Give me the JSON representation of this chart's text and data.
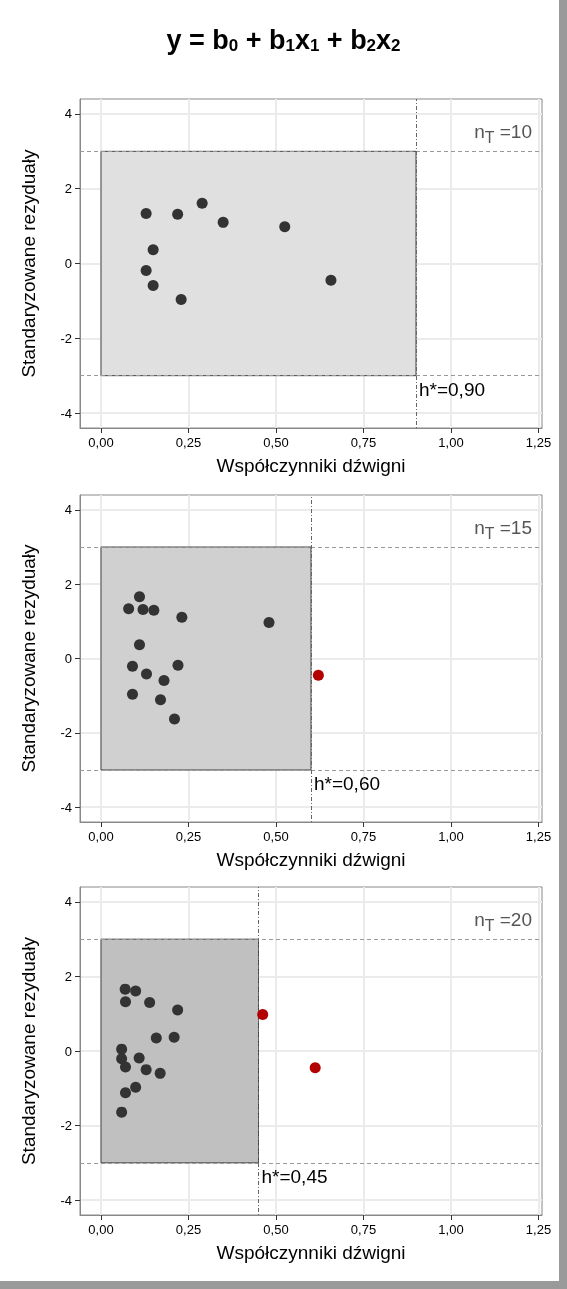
{
  "chart_data": [
    {
      "type": "scatter",
      "title": "y = b$_{0}$ + b$_{1}$x$_{1}$ + b$_{2}$x$_{2}$",
      "xlabel": "Współczynniki dźwigni",
      "ylabel": "Standaryzowane rezyduały",
      "series": [
        {
          "color": "#333333",
          "x": [
            0.129,
            0.219,
            0.289,
            0.349,
            0.525,
            0.149,
            0.129,
            0.149,
            0.229,
            0.657
          ],
          "values": [
            1.34,
            1.32,
            1.61,
            1.1,
            0.98,
            0.37,
            -0.19,
            -0.59,
            -0.96,
            -0.45
          ]
        }
      ],
      "xlim": [
        -0.06,
        1.26
      ],
      "xticks": [
        {
          "value": 0,
          "label": "0,00"
        },
        {
          "value": 0.25,
          "label": "0,25"
        },
        {
          "value": 0.5,
          "label": "0,50"
        },
        {
          "value": 0.75,
          "label": "0,75"
        },
        {
          "value": 1,
          "label": "1,00"
        },
        {
          "value": 1.25,
          "label": "1,25"
        }
      ],
      "ylim": [
        -4.4,
        4.4
      ],
      "yticks": [
        -4,
        -2,
        0,
        2,
        4
      ],
      "annotations": [
        "n$_{T}$ =10"
      ],
      "ref_lines": [
        {
          "axis": "y",
          "value": 3,
          "line_style": "dashed",
          "color": "#999999"
        },
        {
          "axis": "y",
          "value": -3,
          "line_style": "dashed",
          "color": "#999999"
        },
        {
          "axis": "x",
          "value": 0.9,
          "label": "h*=0,90",
          "line_style": "dotted",
          "color": "#666666"
        }
      ],
      "bands": [
        {
          "axis": "x",
          "from": 0,
          "to": 0.9,
          "color": "#e0e0e0"
        }
      ],
      "grid": true,
      "marker": "circle"
    },
    {
      "type": "scatter",
      "xlabel": "Współczynniki dźwigni",
      "ylabel": "Standaryzowane rezyduały",
      "series": [
        {
          "color": "#333333",
          "x": [
            0.11,
            0.079,
            0.12,
            0.151,
            0.231,
            0.48,
            0.11,
            0.09,
            0.22,
            0.13,
            0.18,
            0.09,
            0.17,
            0.21
          ],
          "values": [
            1.66,
            1.34,
            1.32,
            1.3,
            1.11,
            0.97,
            0.37,
            -0.21,
            -0.18,
            -0.42,
            -0.59,
            -0.96,
            -1.11,
            -1.63
          ]
        },
        {
          "color": "#b30000",
          "x": [
            0.621
          ],
          "values": [
            -0.45
          ]
        }
      ],
      "xlim": [
        -0.06,
        1.26
      ],
      "xticks": [
        {
          "value": 0,
          "label": "0,00"
        },
        {
          "value": 0.25,
          "label": "0,25"
        },
        {
          "value": 0.5,
          "label": "0,50"
        },
        {
          "value": 0.75,
          "label": "0,75"
        },
        {
          "value": 1,
          "label": "1,00"
        },
        {
          "value": 1.25,
          "label": "1,25"
        }
      ],
      "ylim": [
        -4.4,
        4.4
      ],
      "yticks": [
        -4,
        -2,
        0,
        2,
        4
      ],
      "annotations": [
        "n$_{T}$ =15"
      ],
      "ref_lines": [
        {
          "axis": "y",
          "value": 3,
          "line_style": "dashed",
          "color": "#999999"
        },
        {
          "axis": "y",
          "value": -3,
          "line_style": "dashed",
          "color": "#999999"
        },
        {
          "axis": "x",
          "value": 0.6,
          "label": "h*=0,60",
          "line_style": "dotted",
          "color": "#666666"
        }
      ],
      "bands": [
        {
          "axis": "x",
          "from": 0,
          "to": 0.6,
          "color": "#d0d0d0"
        }
      ],
      "grid": true,
      "marker": "circle"
    },
    {
      "type": "scatter",
      "xlabel": "Współczynniki dźwigni",
      "ylabel": "Standaryzowane rezyduały",
      "series": [
        {
          "color": "#333333",
          "x": [
            0.069,
            0.099,
            0.07,
            0.139,
            0.219,
            0.158,
            0.209,
            0.059,
            0.059,
            0.109,
            0.07,
            0.129,
            0.169,
            0.099,
            0.07,
            0.059
          ],
          "values": [
            1.66,
            1.61,
            1.32,
            1.3,
            1.1,
            0.35,
            0.37,
            0.05,
            -0.21,
            -0.19,
            -0.43,
            -0.5,
            -0.6,
            -0.97,
            -1.12,
            -1.64
          ]
        },
        {
          "color": "#b30000",
          "x": [
            0.462,
            0.612
          ],
          "values": [
            0.98,
            -0.45
          ]
        }
      ],
      "xlim": [
        -0.06,
        1.26
      ],
      "xticks": [
        {
          "value": 0,
          "label": "0,00"
        },
        {
          "value": 0.25,
          "label": "0,25"
        },
        {
          "value": 0.5,
          "label": "0,50"
        },
        {
          "value": 0.75,
          "label": "0,75"
        },
        {
          "value": 1,
          "label": "1,00"
        },
        {
          "value": 1.25,
          "label": "1,25"
        }
      ],
      "ylim": [
        -4.4,
        4.4
      ],
      "yticks": [
        -4,
        -2,
        0,
        2,
        4
      ],
      "annotations": [
        "n$_{T}$ =20"
      ],
      "ref_lines": [
        {
          "axis": "y",
          "value": 3,
          "line_style": "dashed",
          "color": "#999999"
        },
        {
          "axis": "y",
          "value": -3,
          "line_style": "dashed",
          "color": "#999999"
        },
        {
          "axis": "x",
          "value": 0.45,
          "label": "h*=0,45",
          "line_style": "dotted",
          "color": "#666666"
        }
      ],
      "bands": [
        {
          "axis": "x",
          "from": 0,
          "to": 0.45,
          "color": "#c0c0c0"
        }
      ],
      "grid": true,
      "marker": "circle"
    }
  ]
}
